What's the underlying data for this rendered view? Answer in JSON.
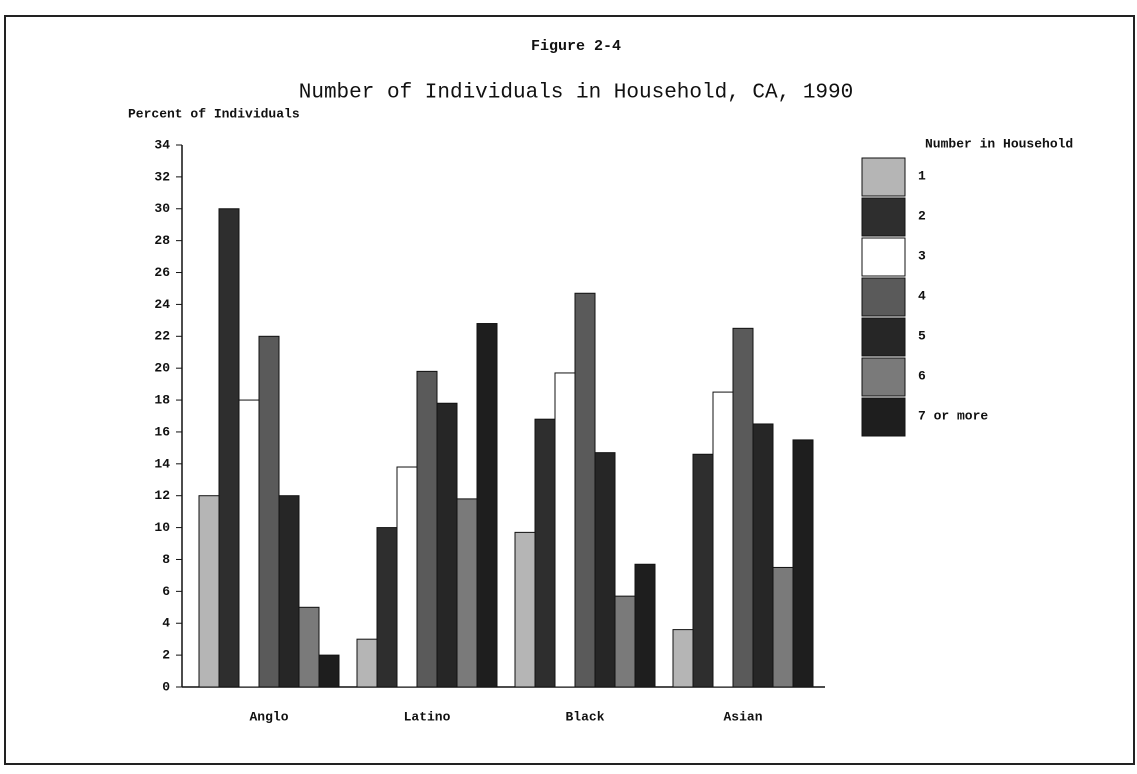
{
  "chart_data": {
    "type": "bar",
    "figure_label": "Figure 2-4",
    "title": "Number of Individuals in Household, CA, 1990",
    "y_label": "Percent of Individuals",
    "legend_title": "Number in Household",
    "categories": [
      "Anglo",
      "Latino",
      "Black",
      "Asian"
    ],
    "series": [
      {
        "name": "1",
        "color": "#b5b5b5",
        "values": [
          12,
          3,
          9.7,
          3.6
        ]
      },
      {
        "name": "2",
        "color": "#2e2e2e",
        "values": [
          30,
          10,
          16.8,
          14.6
        ]
      },
      {
        "name": "3",
        "color": "#ffffff",
        "values": [
          18,
          13.8,
          19.7,
          18.5
        ]
      },
      {
        "name": "4",
        "color": "#5a5a5a",
        "values": [
          22,
          19.8,
          24.7,
          22.5
        ]
      },
      {
        "name": "5",
        "color": "#262626",
        "values": [
          12,
          17.8,
          14.7,
          16.5
        ]
      },
      {
        "name": "6",
        "color": "#7a7a7a",
        "values": [
          5,
          11.8,
          5.7,
          7.5
        ]
      },
      {
        "name": "7 or more",
        "color": "#1e1e1e",
        "values": [
          2,
          22.8,
          7.7,
          15.5
        ]
      }
    ],
    "ylim": [
      0,
      34
    ],
    "yticks": [
      0,
      2,
      4,
      6,
      8,
      10,
      12,
      14,
      16,
      18,
      20,
      22,
      24,
      26,
      28,
      30,
      32,
      34
    ],
    "grid": false,
    "legend": "right"
  }
}
